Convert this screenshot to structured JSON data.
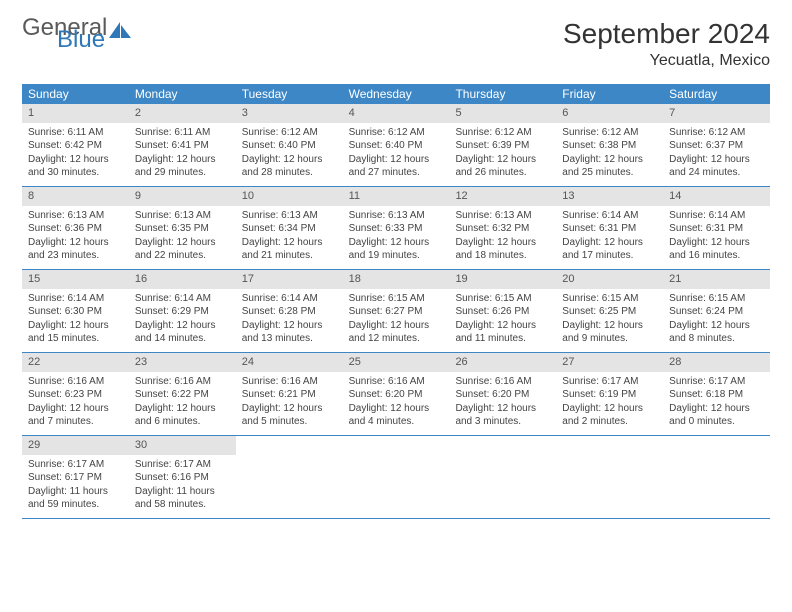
{
  "logo": {
    "text1": "General",
    "text2": "Blue",
    "icon_color": "#2e77b8"
  },
  "title": "September 2024",
  "location": "Yecuatla, Mexico",
  "colors": {
    "header_bg": "#3d87c7",
    "header_text": "#ffffff",
    "daynum_bg": "#e4e4e4",
    "row_border": "#3d87c7",
    "body_text": "#444444"
  },
  "day_names": [
    "Sunday",
    "Monday",
    "Tuesday",
    "Wednesday",
    "Thursday",
    "Friday",
    "Saturday"
  ],
  "weeks": [
    [
      {
        "n": "1",
        "sunrise": "Sunrise: 6:11 AM",
        "sunset": "Sunset: 6:42 PM",
        "daylight": "Daylight: 12 hours and 30 minutes."
      },
      {
        "n": "2",
        "sunrise": "Sunrise: 6:11 AM",
        "sunset": "Sunset: 6:41 PM",
        "daylight": "Daylight: 12 hours and 29 minutes."
      },
      {
        "n": "3",
        "sunrise": "Sunrise: 6:12 AM",
        "sunset": "Sunset: 6:40 PM",
        "daylight": "Daylight: 12 hours and 28 minutes."
      },
      {
        "n": "4",
        "sunrise": "Sunrise: 6:12 AM",
        "sunset": "Sunset: 6:40 PM",
        "daylight": "Daylight: 12 hours and 27 minutes."
      },
      {
        "n": "5",
        "sunrise": "Sunrise: 6:12 AM",
        "sunset": "Sunset: 6:39 PM",
        "daylight": "Daylight: 12 hours and 26 minutes."
      },
      {
        "n": "6",
        "sunrise": "Sunrise: 6:12 AM",
        "sunset": "Sunset: 6:38 PM",
        "daylight": "Daylight: 12 hours and 25 minutes."
      },
      {
        "n": "7",
        "sunrise": "Sunrise: 6:12 AM",
        "sunset": "Sunset: 6:37 PM",
        "daylight": "Daylight: 12 hours and 24 minutes."
      }
    ],
    [
      {
        "n": "8",
        "sunrise": "Sunrise: 6:13 AM",
        "sunset": "Sunset: 6:36 PM",
        "daylight": "Daylight: 12 hours and 23 minutes."
      },
      {
        "n": "9",
        "sunrise": "Sunrise: 6:13 AM",
        "sunset": "Sunset: 6:35 PM",
        "daylight": "Daylight: 12 hours and 22 minutes."
      },
      {
        "n": "10",
        "sunrise": "Sunrise: 6:13 AM",
        "sunset": "Sunset: 6:34 PM",
        "daylight": "Daylight: 12 hours and 21 minutes."
      },
      {
        "n": "11",
        "sunrise": "Sunrise: 6:13 AM",
        "sunset": "Sunset: 6:33 PM",
        "daylight": "Daylight: 12 hours and 19 minutes."
      },
      {
        "n": "12",
        "sunrise": "Sunrise: 6:13 AM",
        "sunset": "Sunset: 6:32 PM",
        "daylight": "Daylight: 12 hours and 18 minutes."
      },
      {
        "n": "13",
        "sunrise": "Sunrise: 6:14 AM",
        "sunset": "Sunset: 6:31 PM",
        "daylight": "Daylight: 12 hours and 17 minutes."
      },
      {
        "n": "14",
        "sunrise": "Sunrise: 6:14 AM",
        "sunset": "Sunset: 6:31 PM",
        "daylight": "Daylight: 12 hours and 16 minutes."
      }
    ],
    [
      {
        "n": "15",
        "sunrise": "Sunrise: 6:14 AM",
        "sunset": "Sunset: 6:30 PM",
        "daylight": "Daylight: 12 hours and 15 minutes."
      },
      {
        "n": "16",
        "sunrise": "Sunrise: 6:14 AM",
        "sunset": "Sunset: 6:29 PM",
        "daylight": "Daylight: 12 hours and 14 minutes."
      },
      {
        "n": "17",
        "sunrise": "Sunrise: 6:14 AM",
        "sunset": "Sunset: 6:28 PM",
        "daylight": "Daylight: 12 hours and 13 minutes."
      },
      {
        "n": "18",
        "sunrise": "Sunrise: 6:15 AM",
        "sunset": "Sunset: 6:27 PM",
        "daylight": "Daylight: 12 hours and 12 minutes."
      },
      {
        "n": "19",
        "sunrise": "Sunrise: 6:15 AM",
        "sunset": "Sunset: 6:26 PM",
        "daylight": "Daylight: 12 hours and 11 minutes."
      },
      {
        "n": "20",
        "sunrise": "Sunrise: 6:15 AM",
        "sunset": "Sunset: 6:25 PM",
        "daylight": "Daylight: 12 hours and 9 minutes."
      },
      {
        "n": "21",
        "sunrise": "Sunrise: 6:15 AM",
        "sunset": "Sunset: 6:24 PM",
        "daylight": "Daylight: 12 hours and 8 minutes."
      }
    ],
    [
      {
        "n": "22",
        "sunrise": "Sunrise: 6:16 AM",
        "sunset": "Sunset: 6:23 PM",
        "daylight": "Daylight: 12 hours and 7 minutes."
      },
      {
        "n": "23",
        "sunrise": "Sunrise: 6:16 AM",
        "sunset": "Sunset: 6:22 PM",
        "daylight": "Daylight: 12 hours and 6 minutes."
      },
      {
        "n": "24",
        "sunrise": "Sunrise: 6:16 AM",
        "sunset": "Sunset: 6:21 PM",
        "daylight": "Daylight: 12 hours and 5 minutes."
      },
      {
        "n": "25",
        "sunrise": "Sunrise: 6:16 AM",
        "sunset": "Sunset: 6:20 PM",
        "daylight": "Daylight: 12 hours and 4 minutes."
      },
      {
        "n": "26",
        "sunrise": "Sunrise: 6:16 AM",
        "sunset": "Sunset: 6:20 PM",
        "daylight": "Daylight: 12 hours and 3 minutes."
      },
      {
        "n": "27",
        "sunrise": "Sunrise: 6:17 AM",
        "sunset": "Sunset: 6:19 PM",
        "daylight": "Daylight: 12 hours and 2 minutes."
      },
      {
        "n": "28",
        "sunrise": "Sunrise: 6:17 AM",
        "sunset": "Sunset: 6:18 PM",
        "daylight": "Daylight: 12 hours and 0 minutes."
      }
    ],
    [
      {
        "n": "29",
        "sunrise": "Sunrise: 6:17 AM",
        "sunset": "Sunset: 6:17 PM",
        "daylight": "Daylight: 11 hours and 59 minutes."
      },
      {
        "n": "30",
        "sunrise": "Sunrise: 6:17 AM",
        "sunset": "Sunset: 6:16 PM",
        "daylight": "Daylight: 11 hours and 58 minutes."
      },
      null,
      null,
      null,
      null,
      null
    ]
  ]
}
